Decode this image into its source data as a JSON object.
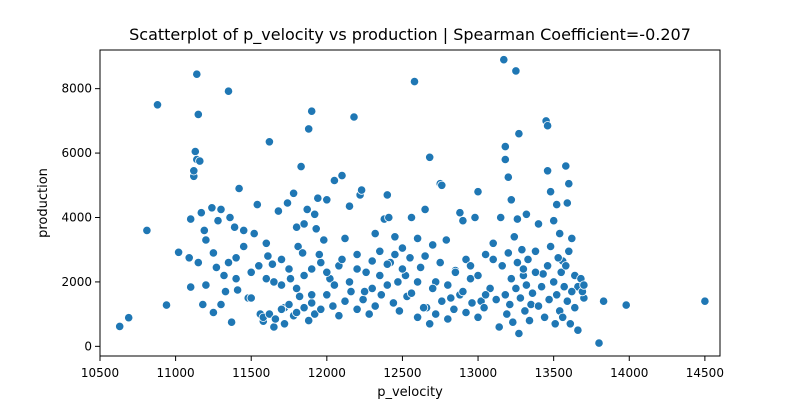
{
  "chart_data": {
    "type": "scatter",
    "title": "Scatterplot of p_velocity vs production | Spearman Coefficient=-0.207",
    "xlabel": "p_velocity",
    "ylabel": "production",
    "xlim": [
      10500,
      14600
    ],
    "ylim": [
      -300,
      9200
    ],
    "xticks": [
      10500,
      11000,
      11500,
      12000,
      12500,
      13000,
      13500,
      14000,
      14500
    ],
    "yticks": [
      0,
      2000,
      4000,
      6000,
      8000
    ],
    "grid": false,
    "marker_color": "#1f77b4",
    "marker_edge": "#ffffff",
    "points": [
      [
        10630,
        620
      ],
      [
        10690,
        890
      ],
      [
        10810,
        3600
      ],
      [
        10880,
        7500
      ],
      [
        10940,
        1280
      ],
      [
        11020,
        2920
      ],
      [
        11090,
        2750
      ],
      [
        11100,
        3950
      ],
      [
        11100,
        1840
      ],
      [
        11120,
        5280
      ],
      [
        11120,
        5450
      ],
      [
        11130,
        6050
      ],
      [
        11140,
        8450
      ],
      [
        11140,
        5800
      ],
      [
        11150,
        7200
      ],
      [
        11160,
        5750
      ],
      [
        11170,
        4150
      ],
      [
        11180,
        1300
      ],
      [
        11190,
        3600
      ],
      [
        11200,
        3300
      ],
      [
        11240,
        4300
      ],
      [
        11250,
        1050
      ],
      [
        11270,
        2450
      ],
      [
        11280,
        3900
      ],
      [
        11300,
        4250
      ],
      [
        11320,
        2200
      ],
      [
        11330,
        1700
      ],
      [
        11350,
        7920
      ],
      [
        11360,
        4000
      ],
      [
        11370,
        750
      ],
      [
        11390,
        3700
      ],
      [
        11400,
        2750
      ],
      [
        11410,
        1750
      ],
      [
        11420,
        4900
      ],
      [
        11450,
        3600
      ],
      [
        11480,
        1500
      ],
      [
        11500,
        2300
      ],
      [
        11520,
        3500
      ],
      [
        11540,
        4400
      ],
      [
        11560,
        1000
      ],
      [
        11580,
        780
      ],
      [
        11600,
        3200
      ],
      [
        11610,
        2800
      ],
      [
        11620,
        6350
      ],
      [
        11640,
        2550
      ],
      [
        11650,
        600
      ],
      [
        11680,
        4200
      ],
      [
        11700,
        1900
      ],
      [
        11720,
        1200
      ],
      [
        11740,
        4450
      ],
      [
        11760,
        2100
      ],
      [
        11780,
        4750
      ],
      [
        11800,
        3700
      ],
      [
        11810,
        3100
      ],
      [
        11830,
        5580
      ],
      [
        11840,
        2900
      ],
      [
        11850,
        3800
      ],
      [
        11870,
        4250
      ],
      [
        11880,
        6750
      ],
      [
        11900,
        7300
      ],
      [
        11900,
        2400
      ],
      [
        11920,
        4100
      ],
      [
        11930,
        3650
      ],
      [
        11940,
        4600
      ],
      [
        11960,
        2600
      ],
      [
        11980,
        3300
      ],
      [
        12000,
        4550
      ],
      [
        12020,
        2100
      ],
      [
        12050,
        5150
      ],
      [
        12080,
        2500
      ],
      [
        12100,
        5300
      ],
      [
        12120,
        3350
      ],
      [
        12150,
        4350
      ],
      [
        12180,
        7120
      ],
      [
        12200,
        2850
      ],
      [
        12220,
        4700
      ],
      [
        12230,
        4850
      ],
      [
        12260,
        2300
      ],
      [
        12300,
        1800
      ],
      [
        12320,
        3500
      ],
      [
        12350,
        2950
      ],
      [
        12380,
        3950
      ],
      [
        12400,
        4700
      ],
      [
        12410,
        4000
      ],
      [
        12420,
        2600
      ],
      [
        12450,
        3400
      ],
      [
        12470,
        2000
      ],
      [
        12500,
        3050
      ],
      [
        12530,
        1550
      ],
      [
        12560,
        4000
      ],
      [
        12580,
        8220
      ],
      [
        12600,
        3350
      ],
      [
        12620,
        2450
      ],
      [
        12650,
        4250
      ],
      [
        12660,
        1200
      ],
      [
        12680,
        5870
      ],
      [
        12700,
        3150
      ],
      [
        12720,
        2000
      ],
      [
        12750,
        5050
      ],
      [
        12760,
        5000
      ],
      [
        12790,
        3300
      ],
      [
        12820,
        1500
      ],
      [
        12850,
        2350
      ],
      [
        12880,
        4150
      ],
      [
        12900,
        3900
      ],
      [
        12920,
        2700
      ],
      [
        12950,
        2100
      ],
      [
        12980,
        4000
      ],
      [
        13000,
        4800
      ],
      [
        13020,
        1400
      ],
      [
        13050,
        2850
      ],
      [
        13100,
        3200
      ],
      [
        13150,
        4000
      ],
      [
        13170,
        8900
      ],
      [
        13180,
        5800
      ],
      [
        13180,
        6200
      ],
      [
        13200,
        5250
      ],
      [
        13220,
        4550
      ],
      [
        13250,
        8550
      ],
      [
        13260,
        3950
      ],
      [
        13270,
        6600
      ],
      [
        13300,
        2200
      ],
      [
        13320,
        4100
      ],
      [
        13350,
        1300
      ],
      [
        13380,
        2950
      ],
      [
        13400,
        3800
      ],
      [
        13430,
        2250
      ],
      [
        13450,
        7000
      ],
      [
        13460,
        6850
      ],
      [
        13460,
        5450
      ],
      [
        13480,
        4800
      ],
      [
        13500,
        3900
      ],
      [
        13520,
        4400
      ],
      [
        13540,
        3500
      ],
      [
        13560,
        2650
      ],
      [
        13580,
        5600
      ],
      [
        13590,
        4450
      ],
      [
        13600,
        5050
      ],
      [
        13620,
        3350
      ],
      [
        13640,
        2200
      ],
      [
        13660,
        1850
      ],
      [
        13700,
        1500
      ],
      [
        13800,
        100
      ],
      [
        13830,
        1400
      ],
      [
        13980,
        1280
      ],
      [
        14500,
        1400
      ],
      [
        11580,
        900
      ],
      [
        11620,
        1000
      ],
      [
        11660,
        850
      ],
      [
        11700,
        1150
      ],
      [
        11720,
        700
      ],
      [
        11750,
        1300
      ],
      [
        11780,
        950
      ],
      [
        11800,
        1050
      ],
      [
        11820,
        1550
      ],
      [
        11850,
        1200
      ],
      [
        11880,
        800
      ],
      [
        11900,
        1350
      ],
      [
        11920,
        1000
      ],
      [
        11960,
        1150
      ],
      [
        12000,
        1600
      ],
      [
        12040,
        1250
      ],
      [
        12080,
        950
      ],
      [
        12120,
        1400
      ],
      [
        12160,
        1700
      ],
      [
        12200,
        1150
      ],
      [
        12240,
        1450
      ],
      [
        12280,
        1000
      ],
      [
        12320,
        1250
      ],
      [
        12360,
        1600
      ],
      [
        12400,
        1900
      ],
      [
        12440,
        1350
      ],
      [
        12480,
        1100
      ],
      [
        12520,
        2200
      ],
      [
        12560,
        1650
      ],
      [
        12600,
        900
      ],
      [
        12640,
        1200
      ],
      [
        12680,
        700
      ],
      [
        12720,
        1000
      ],
      [
        12760,
        1400
      ],
      [
        12800,
        850
      ],
      [
        12840,
        1150
      ],
      [
        12880,
        1600
      ],
      [
        12920,
        1050
      ],
      [
        12960,
        1350
      ],
      [
        13000,
        900
      ],
      [
        13040,
        1200
      ],
      [
        13080,
        1800
      ],
      [
        13120,
        1450
      ],
      [
        13140,
        600
      ],
      [
        13160,
        2500
      ],
      [
        13180,
        1600
      ],
      [
        13190,
        1000
      ],
      [
        13200,
        2900
      ],
      [
        13210,
        1300
      ],
      [
        13220,
        2100
      ],
      [
        13230,
        750
      ],
      [
        13240,
        3400
      ],
      [
        13250,
        1800
      ],
      [
        13260,
        2600
      ],
      [
        13270,
        400
      ],
      [
        13280,
        1500
      ],
      [
        13290,
        3000
      ],
      [
        13300,
        2400
      ],
      [
        13310,
        1100
      ],
      [
        13320,
        1900
      ],
      [
        13330,
        2700
      ],
      [
        13340,
        800
      ],
      [
        13360,
        1650
      ],
      [
        13380,
        2300
      ],
      [
        13400,
        1250
      ],
      [
        13420,
        1850
      ],
      [
        13440,
        900
      ],
      [
        13460,
        2500
      ],
      [
        13470,
        1450
      ],
      [
        13480,
        3100
      ],
      [
        13500,
        2000
      ],
      [
        13510,
        700
      ],
      [
        13520,
        1600
      ],
      [
        13530,
        2750
      ],
      [
        13540,
        1100
      ],
      [
        13550,
        2300
      ],
      [
        13560,
        900
      ],
      [
        13570,
        1850
      ],
      [
        13580,
        2500
      ],
      [
        13590,
        1400
      ],
      [
        13600,
        2950
      ],
      [
        13610,
        700
      ],
      [
        13620,
        1700
      ],
      [
        13640,
        1200
      ],
      [
        13660,
        500
      ],
      [
        13680,
        2100
      ],
      [
        13690,
        1700
      ],
      [
        13700,
        1900
      ],
      [
        11150,
        2600
      ],
      [
        11200,
        1900
      ],
      [
        11250,
        2900
      ],
      [
        11300,
        1300
      ],
      [
        11350,
        2600
      ],
      [
        11400,
        2100
      ],
      [
        11450,
        3100
      ],
      [
        11500,
        1500
      ],
      [
        11550,
        2500
      ],
      [
        11600,
        2100
      ],
      [
        11650,
        2000
      ],
      [
        11700,
        2700
      ],
      [
        11750,
        2400
      ],
      [
        11800,
        1800
      ],
      [
        11850,
        2200
      ],
      [
        11900,
        1600
      ],
      [
        11950,
        2850
      ],
      [
        12000,
        2300
      ],
      [
        12050,
        1900
      ],
      [
        12100,
        2700
      ],
      [
        12150,
        2000
      ],
      [
        12200,
        2400
      ],
      [
        12250,
        1700
      ],
      [
        12300,
        2650
      ],
      [
        12350,
        2200
      ],
      [
        12400,
        2550
      ],
      [
        12450,
        2850
      ],
      [
        12500,
        2400
      ],
      [
        12550,
        2750
      ],
      [
        12600,
        2000
      ],
      [
        12650,
        2800
      ],
      [
        12700,
        1800
      ],
      [
        12750,
        2600
      ],
      [
        12800,
        1900
      ],
      [
        12850,
        2300
      ],
      [
        12900,
        1700
      ],
      [
        12950,
        2500
      ],
      [
        13000,
        2200
      ],
      [
        13050,
        1600
      ],
      [
        13100,
        2700
      ]
    ]
  }
}
